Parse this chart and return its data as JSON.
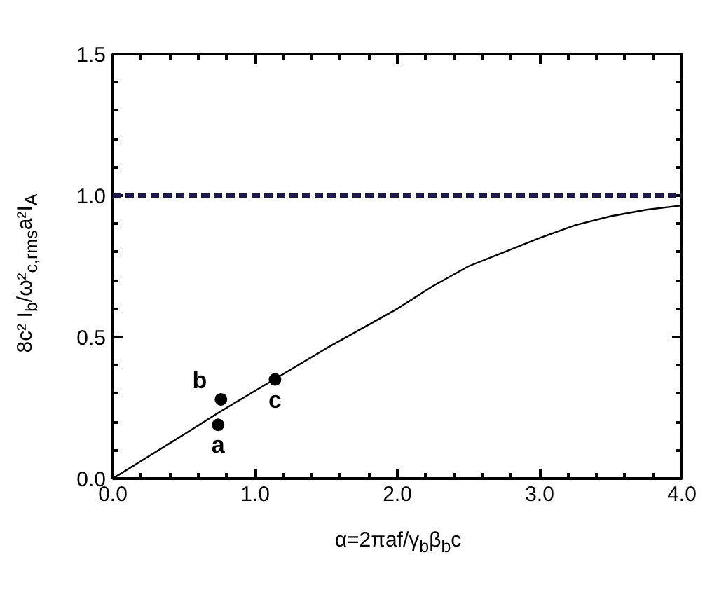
{
  "chart_data": {
    "type": "line",
    "xlabel": "α=2πaf/γ$_{b}$β$_{b}$c",
    "ylabel": "8c² I$_{b}$/ω²$_{c,rms}$a²I$_{A}$",
    "xlim": [
      0,
      4
    ],
    "ylim": [
      0,
      1.5
    ],
    "xticks": [
      {
        "value": 0,
        "label": "0.0"
      },
      {
        "value": 1,
        "label": "1.0"
      },
      {
        "value": 2,
        "label": "2.0"
      },
      {
        "value": 3,
        "label": "3.0"
      },
      {
        "value": 4,
        "label": "4.0"
      }
    ],
    "yticks": [
      {
        "value": 0,
        "label": "0.0"
      },
      {
        "value": 0.5,
        "label": "0.5"
      },
      {
        "value": 1,
        "label": "1.0"
      },
      {
        "value": 1.5,
        "label": "1.5"
      }
    ],
    "grid": false,
    "series": [
      {
        "color": "#000000",
        "line_style": "solid",
        "x": [
          0,
          0.25,
          0.5,
          0.75,
          1.0,
          1.25,
          1.5,
          1.75,
          2.0,
          2.25,
          2.5,
          2.75,
          3.0,
          3.25,
          3.5,
          3.75,
          4.0
        ],
        "values": [
          0,
          0.078,
          0.156,
          0.235,
          0.31,
          0.385,
          0.46,
          0.53,
          0.6,
          0.68,
          0.75,
          0.8,
          0.85,
          0.895,
          0.927,
          0.95,
          0.965
        ]
      },
      {
        "type": "scatter",
        "color": "#000000",
        "marker": "circle",
        "x": [
          0.74,
          0.76,
          1.14
        ],
        "values": [
          0.19,
          0.28,
          0.35
        ]
      }
    ],
    "ref_lines": [
      {
        "axis": "y",
        "value": 1.0,
        "color": "#1a1a4e",
        "line_style": "dashed"
      }
    ],
    "annotations": [
      {
        "text": "a",
        "x": 0.74,
        "y": 0.19
      },
      {
        "text": "b",
        "x": 0.76,
        "y": 0.28
      },
      {
        "text": "c",
        "x": 1.14,
        "y": 0.35
      }
    ]
  }
}
